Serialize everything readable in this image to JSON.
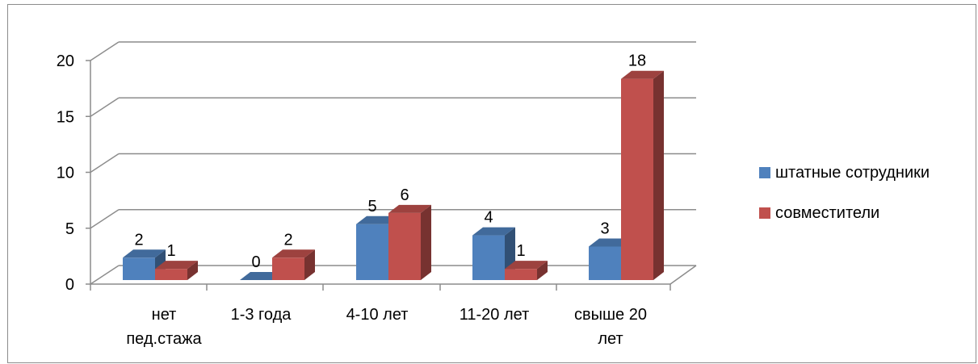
{
  "chart_data": {
    "type": "bar",
    "categories": [
      "нет\nпед.стажа",
      "1-3 года",
      "4-10 лет",
      "11-20 лет",
      "свыше 20\nлет"
    ],
    "series": [
      {
        "name": "штатные сотрудники",
        "values": [
          2,
          0,
          5,
          4,
          3
        ],
        "color": "#4f81bd"
      },
      {
        "name": "совместители",
        "values": [
          1,
          2,
          6,
          1,
          18
        ],
        "color": "#c0504d"
      }
    ],
    "ylim": [
      0,
      20
    ],
    "yticks": [
      "0",
      "5",
      "10",
      "15",
      "20"
    ],
    "grid": true,
    "legend": "right",
    "style": "3d-clustered-column"
  }
}
